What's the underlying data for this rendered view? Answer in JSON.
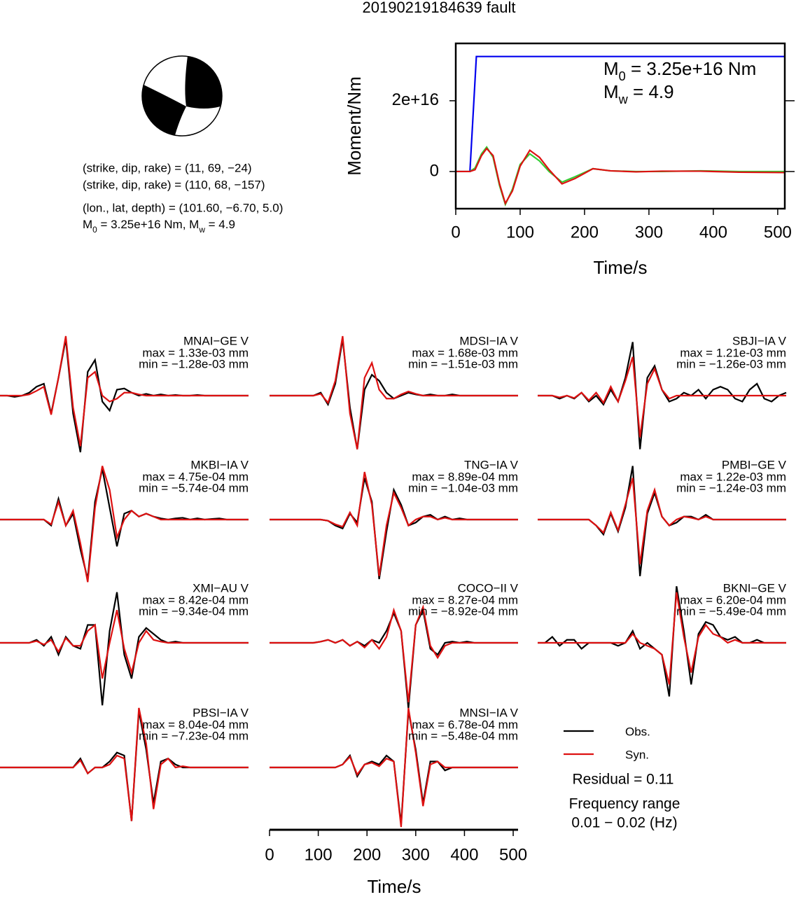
{
  "title": "20190219184639 fault",
  "mechanism": {
    "lines": [
      "(strike, dip, rake) = (11, 69, −24)",
      "(strike, dip, rake) = (110, 68, −157)",
      "(lon., lat, depth) = (101.60, −6.70, 5.0)"
    ],
    "moment_line": [
      {
        "text": "M"
      },
      {
        "text": "0",
        "sub": true
      },
      {
        "text": " = 3.25e+16 Nm, M"
      },
      {
        "text": "w",
        "sub": true
      },
      {
        "text": " = 4.9"
      }
    ]
  },
  "chart_data": [
    {
      "type": "line",
      "xlabel": "Time/s",
      "ylabel": "Moment/Nm",
      "xlim": [
        0,
        511
      ],
      "ylim": [
        -1.05e+16,
        3.62e+16
      ],
      "xticks": [
        0,
        100,
        200,
        300,
        400,
        500
      ],
      "yticks": [
        0,
        {
          "value": 2e+16,
          "label": "2e+16"
        }
      ],
      "annotations": [
        [
          {
            "text": "M"
          },
          {
            "text": "0",
            "sub": true
          },
          {
            "text": " = 3.25e+16 Nm"
          }
        ],
        [
          {
            "text": "M"
          },
          {
            "text": "w",
            "sub": true
          },
          {
            "text": " = 4.9"
          }
        ]
      ],
      "series": [
        {
          "color": "#0000ee",
          "x": [
            0,
            22,
            32,
            511
          ],
          "values": [
            0,
            0,
            3.25e+16,
            3.25e+16
          ]
        },
        {
          "color": "#33cc33",
          "x": [
            0,
            22,
            30,
            40,
            48,
            58,
            68,
            77,
            88,
            100,
            115,
            130,
            145,
            165,
            185,
            213,
            240,
            280,
            320,
            380,
            440,
            511
          ],
          "values": [
            0,
            0,
            1000000000000000.0,
            5000000000000000.0,
            6900000000000000.0,
            4000000000000000.0,
            -4000000000000000.0,
            -9300000000000000.0,
            -5000000000000000.0,
            2000000000000000.0,
            5000000000000000.0,
            3000000000000000.0,
            0,
            -3000000000000000.0,
            -1500000000000000.0,
            800000000000000.0,
            200000000000000.0,
            0,
            0,
            200000000000000.0,
            0,
            0
          ]
        },
        {
          "color": "#dd1111",
          "x": [
            0,
            22,
            30,
            40,
            48,
            58,
            68,
            77,
            88,
            100,
            115,
            130,
            145,
            165,
            185,
            213,
            240,
            280,
            320,
            380,
            440,
            511
          ],
          "values": [
            0,
            0,
            500000000000000.0,
            4500000000000000.0,
            6500000000000000.0,
            4500000000000000.0,
            -3500000000000000.0,
            -9000000000000000.0,
            -5500000000000000.0,
            1500000000000000.0,
            6000000000000000.0,
            4000000000000000.0,
            500000000000000.0,
            -3500000000000000.0,
            -2000000000000000.0,
            800000000000000.0,
            200000000000000.0,
            -100000000000000.0,
            100000000000000.0,
            100000000000000.0,
            -200000000000000.0,
            -300000000000000.0
          ]
        }
      ]
    },
    {
      "type": "waveform",
      "xlabel": "Time/s",
      "xlim": [
        0,
        510
      ],
      "xticks": [
        0,
        100,
        200,
        300,
        400,
        500
      ],
      "ylim": [
        -1,
        1
      ],
      "x": [
        0,
        15,
        30,
        45,
        60,
        75,
        90,
        105,
        120,
        135,
        150,
        165,
        180,
        195,
        210,
        225,
        240,
        255,
        270,
        285,
        300,
        315,
        330,
        345,
        360,
        375,
        390,
        405,
        420,
        435,
        450,
        465,
        480,
        495,
        510
      ],
      "legend": [
        {
          "name": "Obs.",
          "color": "#000000"
        },
        {
          "name": "Syn.",
          "color": "#dd1111"
        }
      ],
      "residual": "Residual = 0.11",
      "frequency": [
        "Frequency range",
        "0.01 − 0.02 (Hz)"
      ],
      "stations": [
        {
          "name": "MNAI−GE V",
          "max": "max = 1.33e-03 mm",
          "min": "min = −1.28e-03 mm",
          "obs": [
            0,
            0,
            -0.02,
            0,
            0.05,
            0.15,
            0.2,
            -0.3,
            0.3,
            0.95,
            -0.3,
            -0.95,
            0.4,
            0.6,
            -0.1,
            -0.25,
            0.1,
            0.12,
            0.05,
            0,
            0.03,
            0,
            0.02,
            0,
            0.01,
            0,
            0,
            0.01,
            0,
            0,
            0,
            0,
            0,
            0,
            0
          ],
          "syn": [
            0,
            0,
            0,
            0,
            0.02,
            0.08,
            0.15,
            -0.32,
            0.3,
            1.0,
            -0.2,
            -0.85,
            0.3,
            0.4,
            0,
            -0.1,
            -0.05,
            0.05,
            0.05,
            0.02,
            0,
            0,
            0,
            0,
            0,
            0,
            0,
            0,
            0,
            0,
            0,
            0,
            0,
            0,
            0
          ]
        },
        {
          "name": "MDSI−IA V",
          "max": "max = 1.68e-03 mm",
          "min": "min = −1.51e-03 mm",
          "obs": [
            0,
            0,
            0,
            0,
            0,
            0,
            0,
            0.05,
            -0.15,
            0.2,
            0.95,
            -0.2,
            -0.9,
            0.1,
            0.35,
            0.25,
            0.05,
            -0.05,
            0,
            0.05,
            0.02,
            0,
            0.02,
            0,
            0,
            0.02,
            0,
            0,
            0,
            0,
            0,
            0,
            0,
            0,
            0
          ],
          "syn": [
            0,
            0,
            0,
            0,
            0,
            0,
            0,
            0.03,
            -0.12,
            0.25,
            1.0,
            -0.3,
            -0.9,
            0.3,
            0.55,
            0.1,
            -0.05,
            -0.05,
            0.02,
            0.07,
            0.03,
            0,
            0,
            0,
            0,
            0,
            0,
            0,
            0,
            0,
            0,
            0,
            0,
            0,
            0
          ]
        },
        {
          "name": "SBJI−IA V",
          "max": "max = 1.21e-03 mm",
          "min": "min = −1.26e-03 mm",
          "obs": [
            0,
            0,
            0,
            -0.05,
            0,
            -0.05,
            0.05,
            -0.1,
            0,
            -0.15,
            0.1,
            -0.1,
            0.3,
            0.9,
            -0.9,
            0.3,
            0.5,
            0.1,
            -0.1,
            -0.05,
            0.05,
            0,
            0.1,
            -0.05,
            0.1,
            0.15,
            0.1,
            -0.05,
            -0.1,
            0.1,
            0.2,
            -0.05,
            -0.1,
            0,
            0.05
          ],
          "syn": [
            0,
            0,
            0,
            -0.03,
            0,
            -0.04,
            0.05,
            -0.08,
            0.05,
            -0.12,
            0.15,
            -0.1,
            0.25,
            0.65,
            -0.7,
            0.2,
            0.45,
            0.1,
            -0.05,
            0,
            0,
            0,
            0,
            0,
            0,
            0,
            0,
            0,
            0,
            0,
            0,
            0,
            0,
            0,
            0
          ]
        },
        {
          "name": "MKBI−IA V",
          "max": "max = 4.75e-04 mm",
          "min": "min = −5.74e-04 mm",
          "obs": [
            0,
            0,
            0,
            0,
            0,
            0,
            0,
            -0.1,
            0.35,
            -0.1,
            0.1,
            -0.5,
            -1.0,
            0.3,
            0.85,
            0.2,
            -0.45,
            0.1,
            0.15,
            0.05,
            0.1,
            0.05,
            0.02,
            0,
            0.02,
            0.03,
            0,
            0.02,
            0,
            0.01,
            0.02,
            0,
            0,
            0,
            0
          ],
          "syn": [
            0,
            0,
            0,
            0,
            0,
            0,
            0,
            -0.08,
            0.3,
            -0.1,
            0.15,
            -0.4,
            -1.05,
            0.2,
            0.9,
            0.5,
            -0.3,
            0,
            0.15,
            0.05,
            0.1,
            0.05,
            0,
            0,
            0,
            0,
            0,
            0,
            0,
            0,
            0,
            0,
            0,
            0,
            0
          ]
        },
        {
          "name": "TNG−IA V",
          "max": "max = 8.89e-04 mm",
          "min": "min = −1.04e-03 mm",
          "obs": [
            0,
            0,
            0,
            0,
            0,
            0,
            0,
            0,
            -0.02,
            -0.1,
            -0.15,
            0.1,
            -0.05,
            0.7,
            0.3,
            -1.0,
            -0.2,
            0.5,
            0.25,
            -0.1,
            -0.05,
            0.05,
            0.08,
            0,
            0.05,
            0,
            0.02,
            0,
            0,
            0,
            0,
            0,
            0,
            0,
            0
          ],
          "syn": [
            0,
            0,
            0,
            0,
            0,
            0,
            0,
            0,
            -0.02,
            -0.08,
            -0.12,
            0.12,
            -0.1,
            0.8,
            0.25,
            -0.95,
            -0.1,
            0.45,
            0.2,
            -0.1,
            0,
            0.05,
            0.05,
            0,
            0.03,
            0,
            0,
            0,
            0,
            0,
            0,
            0,
            0,
            0,
            0
          ]
        },
        {
          "name": "PMBI−GE V",
          "max": "max = 1.22e-03 mm",
          "min": "min = −1.24e-03 mm",
          "obs": [
            0,
            0,
            0,
            0,
            0,
            0,
            0,
            0,
            -0.1,
            -0.25,
            0.1,
            -0.2,
            0.2,
            0.9,
            -0.95,
            0.1,
            0.45,
            0.05,
            -0.1,
            -0.05,
            0.05,
            0.05,
            0,
            0.08,
            0,
            0,
            0,
            0,
            0,
            0,
            0,
            0,
            0,
            0,
            0
          ],
          "syn": [
            0,
            0,
            0,
            0,
            0,
            0,
            0,
            0,
            -0.1,
            -0.22,
            0.12,
            -0.18,
            0.25,
            0.7,
            -0.75,
            0.15,
            0.5,
            0.05,
            -0.1,
            0,
            0.05,
            0.03,
            0,
            0.05,
            0,
            0,
            0,
            0,
            0,
            0,
            0,
            0,
            0,
            0,
            0
          ]
        },
        {
          "name": "XMI−AU V",
          "max": "max = 8.42e-04 mm",
          "min": "min = −9.34e-04 mm",
          "obs": [
            0,
            0,
            0,
            0,
            0,
            0.05,
            -0.05,
            0.1,
            -0.2,
            0.1,
            -0.05,
            -0.1,
            0.3,
            0.3,
            -1.05,
            0.2,
            0.85,
            -0.2,
            -0.6,
            0.1,
            0.25,
            0.15,
            0.05,
            0,
            0.02,
            0,
            0,
            0,
            0,
            0,
            0,
            0,
            0,
            0,
            0
          ],
          "syn": [
            0,
            0,
            0,
            0,
            0,
            0.03,
            -0.03,
            0.05,
            -0.15,
            0.08,
            -0.05,
            -0.05,
            0.2,
            0.3,
            -0.6,
            0,
            0.55,
            -0.1,
            -0.5,
            0,
            0.2,
            0.05,
            0.02,
            0,
            0,
            0,
            0,
            0,
            0,
            0,
            0,
            0,
            0,
            0,
            0
          ]
        },
        {
          "name": "COCO−II V",
          "max": "max = 8.27e-04 mm",
          "min": "min = −8.92e-04 mm",
          "obs": [
            0,
            0,
            0,
            0,
            0,
            0,
            0,
            0.02,
            0.05,
            0,
            0.05,
            -0.05,
            0.02,
            -0.05,
            0.05,
            0,
            0.2,
            0.5,
            0.2,
            -1.1,
            0.3,
            0.55,
            -0.1,
            -0.2,
            0,
            0.02,
            0,
            0.02,
            0,
            0,
            0,
            0,
            0,
            0,
            0
          ],
          "syn": [
            0,
            0,
            0,
            0,
            0,
            0,
            0,
            0.02,
            0.05,
            0,
            0.05,
            -0.05,
            0.02,
            -0.08,
            0.05,
            -0.1,
            0.1,
            0.55,
            0.2,
            -1.0,
            0.3,
            0.6,
            -0.05,
            -0.25,
            -0.05,
            0,
            0,
            0,
            0,
            0,
            0,
            0,
            0,
            0,
            0
          ]
        },
        {
          "name": "BKNI−GE V",
          "max": "max = 6.20e-04 mm",
          "min": "min = −5.49e-04 mm",
          "obs": [
            0,
            0,
            0.1,
            -0.05,
            0.05,
            0.05,
            -0.1,
            0,
            0,
            0,
            0,
            -0.05,
            0,
            0.2,
            -0.1,
            0,
            -0.1,
            -0.2,
            -0.9,
            0.95,
            0.2,
            -0.7,
            0.15,
            0.35,
            0.3,
            0.1,
            0.05,
            0.1,
            0,
            0,
            0.05,
            0,
            0,
            0,
            0
          ],
          "syn": [
            0,
            0,
            0,
            0,
            0,
            0,
            0,
            0,
            0,
            0,
            0,
            0,
            0,
            0.15,
            0,
            -0.05,
            -0.1,
            -0.2,
            -0.7,
            0.85,
            0.1,
            -0.5,
            0.1,
            0.3,
            0.15,
            0.1,
            0,
            0.05,
            0,
            0,
            0,
            0,
            0,
            0,
            0
          ]
        },
        {
          "name": "PBSI−IA V",
          "max": "max = 8.04e-04 mm",
          "min": "min = −7.23e-04 mm",
          "obs": [
            0,
            0,
            0,
            0,
            0,
            0,
            0,
            0,
            0,
            0,
            0,
            0.15,
            -0.1,
            0,
            0,
            0.1,
            0.25,
            0.2,
            -0.9,
            0.95,
            0.3,
            -0.6,
            0.1,
            0.15,
            0.05,
            0,
            0,
            0,
            0,
            0,
            0,
            0,
            0,
            0,
            0
          ],
          "syn": [
            0,
            0,
            0,
            0,
            0,
            0,
            0,
            0,
            0,
            0,
            0,
            0.12,
            -0.1,
            0,
            0,
            0.05,
            0.2,
            0.15,
            -0.9,
            1.0,
            0.4,
            -0.7,
            0.05,
            0.15,
            0,
            0.02,
            0,
            0,
            0,
            0,
            0,
            0,
            0,
            0,
            0
          ]
        },
        {
          "name": "MNSI−IA V",
          "max": "max = 6.78e-04 mm",
          "min": "min = −5.48e-04 mm",
          "obs": [
            0,
            0,
            0,
            0,
            0,
            0,
            0,
            0,
            0,
            0,
            0.05,
            0.2,
            -0.15,
            0.05,
            0.1,
            0.05,
            0.2,
            0.1,
            -0.95,
            0.95,
            0.3,
            -0.6,
            0.1,
            0.1,
            -0.05,
            0,
            0,
            0,
            0,
            0,
            0,
            0,
            0,
            0,
            0
          ],
          "syn": [
            0,
            0,
            0,
            0,
            0,
            0,
            0,
            0,
            0,
            0,
            0.05,
            0.18,
            -0.12,
            0.05,
            0.08,
            0.02,
            0.15,
            0.1,
            -1.0,
            1.0,
            0.25,
            -0.65,
            0.05,
            0.1,
            0,
            0,
            0,
            0,
            0,
            0,
            0,
            0,
            0,
            0,
            0
          ]
        }
      ]
    }
  ]
}
